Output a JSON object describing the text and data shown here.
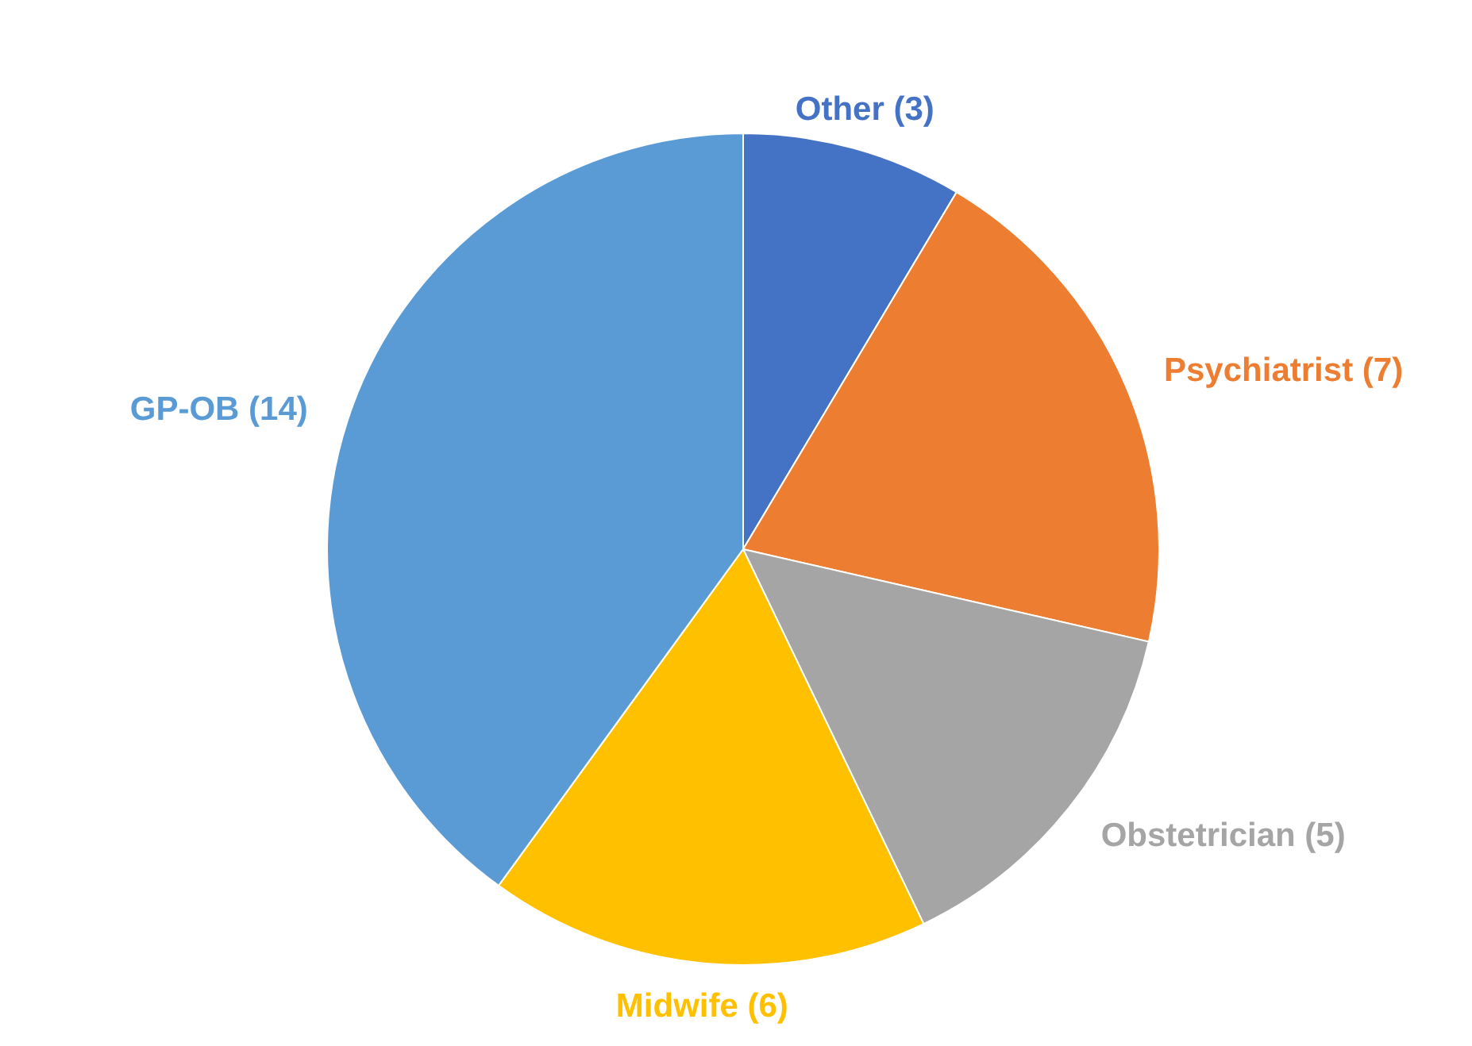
{
  "chart_data": {
    "type": "pie",
    "categories": [
      "Other (3)",
      "Psychiatrist (7)",
      "Obstetrician (5)",
      "Midwife (6)",
      "GP-OB (14)"
    ],
    "values": [
      3,
      7,
      5,
      6,
      14
    ],
    "colors": [
      "#4472c4",
      "#ed7d31",
      "#a5a5a5",
      "#ffc000",
      "#5b9bd5"
    ]
  }
}
